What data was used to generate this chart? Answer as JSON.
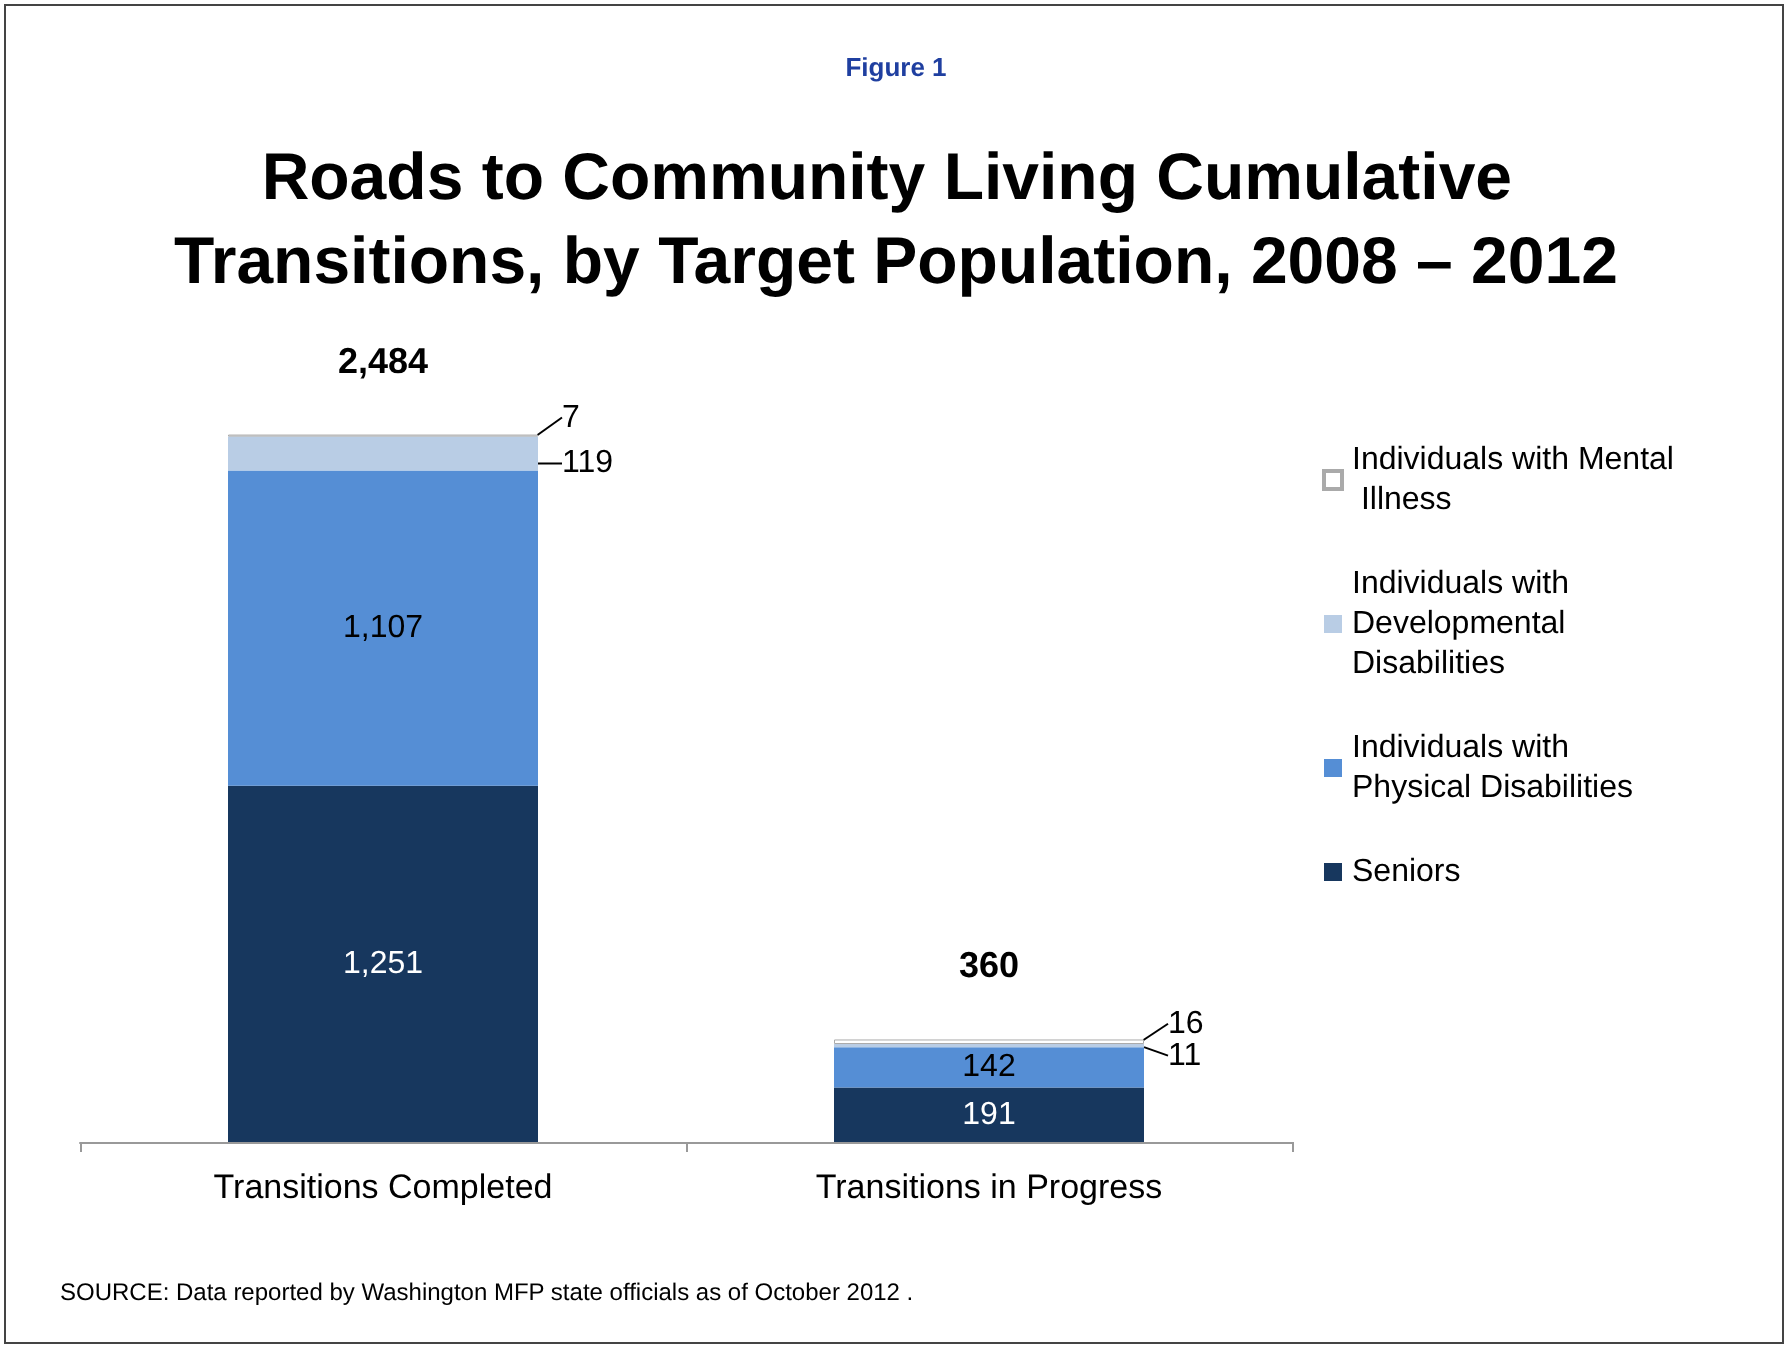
{
  "chart_data": {
    "type": "bar",
    "subtitle": "Figure 1",
    "title": "Roads to Community Living Cumulative Transitions, by Target Population, 2008 – 2012",
    "categories": [
      "Transitions Completed",
      "Transitions in Progress"
    ],
    "stacked": true,
    "totals": [
      "2,484",
      "360"
    ],
    "legend": "right",
    "grid": false,
    "series": [
      {
        "name": "Seniors",
        "color": "#17375e",
        "values": [
          1251,
          191
        ],
        "value_labels": [
          "1,251",
          "191"
        ]
      },
      {
        "name": "Individuals with Physical Disabilities",
        "color": "#558ed5",
        "values": [
          1107,
          142
        ],
        "value_labels": [
          "1,107",
          "142"
        ]
      },
      {
        "name": "Individuals with Developmental Disabilities",
        "color": "#b9cde5",
        "values": [
          119,
          11
        ],
        "value_labels": [
          "119",
          "11"
        ]
      },
      {
        "name": "Individuals with Mental Illness",
        "color": "#ffffff",
        "values": [
          7,
          16
        ],
        "value_labels": [
          "7",
          "16"
        ]
      }
    ],
    "annotations": [
      "SOURCE: Data reported by Washington MFP state officials as of October 2012 ."
    ]
  }
}
